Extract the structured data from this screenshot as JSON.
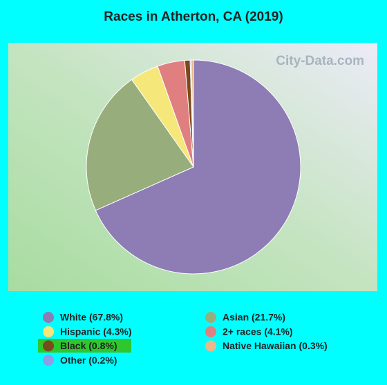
{
  "chart_data": {
    "type": "pie",
    "title": "Races in Atherton, CA (2019)",
    "watermark": "City-Data.com",
    "categories": [
      "White (67.8%)",
      "Asian (21.7%)",
      "Hispanic (4.3%)",
      "2+ races (4.1%)",
      "Black (0.8%)",
      "Other (0.2%)",
      "Native Hawaiian (0.3%)"
    ],
    "values": [
      67.8,
      21.7,
      4.3,
      4.1,
      0.8,
      0.2,
      0.3
    ],
    "colors": [
      "#8e7cb4",
      "#97ae7c",
      "#f5e77a",
      "#e07f7f",
      "#7a4a1a",
      "#8c9ee8",
      "#e8b98a"
    ]
  }
}
